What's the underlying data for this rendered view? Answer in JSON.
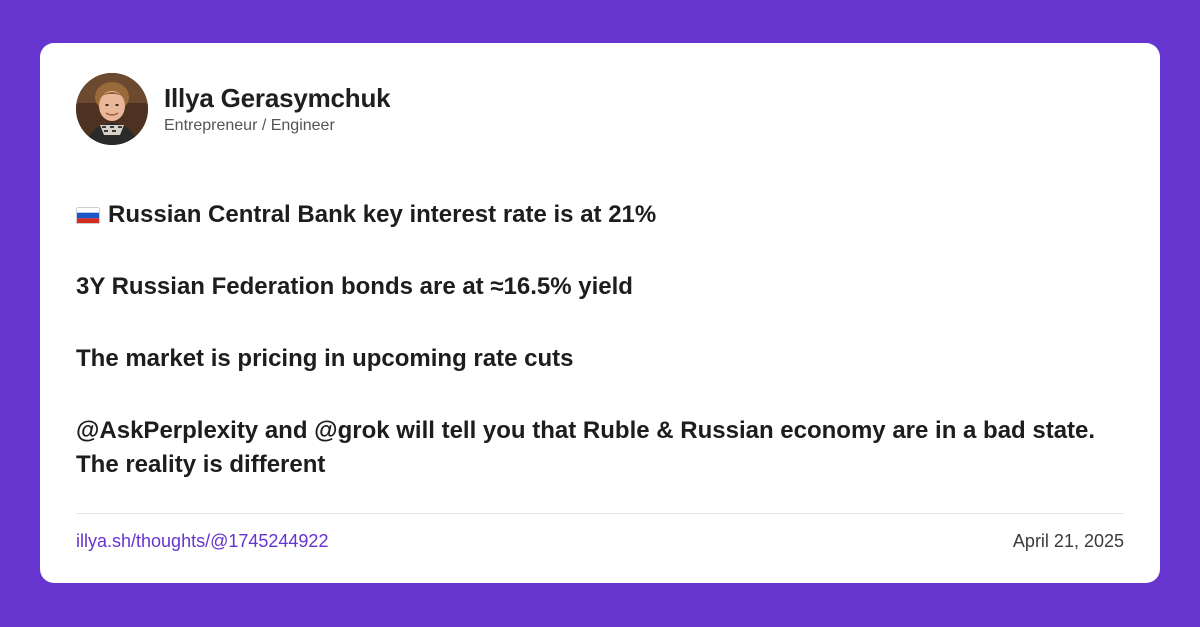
{
  "colors": {
    "background": "#6634cf",
    "card": "#ffffff",
    "link": "#6634cf",
    "text": "#1d1d1d",
    "muted": "#555555"
  },
  "author": {
    "name": "Illya Gerasymchuk",
    "title": "Entrepreneur / Engineer",
    "avatar_icon": "avatar-photo"
  },
  "post": {
    "flag_icon": "russia-flag-icon",
    "lines": [
      "Russian Central Bank key interest rate is at 21%",
      "3Y Russian Federation bonds are at ≈16.5% yield",
      "The market is pricing in upcoming rate cuts",
      "@AskPerplexity and @grok will tell you that Ruble & Russian economy are in a bad state. The reality is different"
    ]
  },
  "footer": {
    "link": "illya.sh/thoughts/@1745244922",
    "date": "April 21, 2025"
  }
}
